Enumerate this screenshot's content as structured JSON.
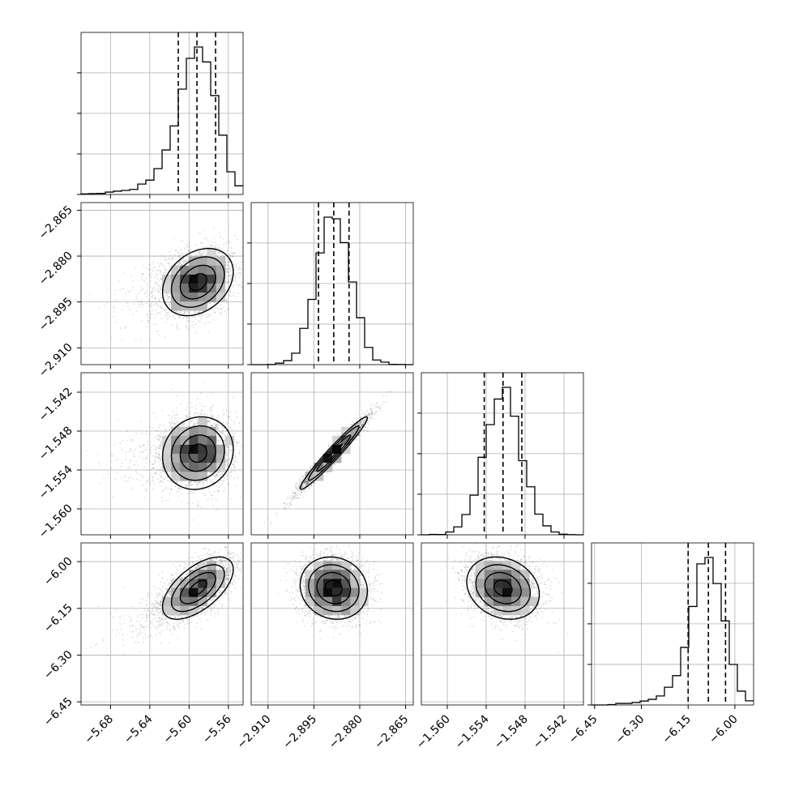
{
  "chart_data": {
    "type": "corner",
    "params": [
      {
        "range": [
          -5.71,
          -5.545
        ],
        "ticks": [
          -5.68,
          -5.64,
          -5.6,
          -5.56
        ],
        "tick_labels": [
          "−5.68",
          "−5.64",
          "−5.60",
          "−5.56"
        ],
        "mean": -5.591,
        "sd": 0.018,
        "skew": "left",
        "quantiles": [
          -5.611,
          -5.592,
          -5.573
        ]
      },
      {
        "range": [
          -2.9155,
          -2.8625
        ],
        "ticks": [
          -2.91,
          -2.895,
          -2.88,
          -2.865
        ],
        "tick_labels": [
          "−2.910",
          "−2.895",
          "−2.880",
          "−2.865"
        ],
        "mean": -2.8885,
        "sd": 0.0055,
        "skew": "none",
        "quantiles": [
          -2.8935,
          -2.8885,
          -2.8835
        ]
      },
      {
        "range": [
          -1.564,
          -1.539
        ],
        "ticks": [
          -1.56,
          -1.554,
          -1.548,
          -1.542
        ],
        "tick_labels": [
          "−1.560",
          "−1.554",
          "−1.548",
          "−1.542"
        ],
        "mean": -1.5514,
        "sd": 0.0028,
        "skew": "none",
        "quantiles": [
          -1.5543,
          -1.5514,
          -1.5485
        ]
      },
      {
        "range": [
          -6.46,
          -5.94
        ],
        "ticks": [
          -6.45,
          -6.3,
          -6.15,
          -6.0
        ],
        "tick_labels": [
          "−6.45",
          "−6.30",
          "−6.15",
          "−6.00"
        ],
        "mean": -6.085,
        "sd": 0.05,
        "skew": "left",
        "quantiles": [
          -6.15,
          -6.085,
          -6.03
        ]
      }
    ],
    "correlations": {
      "1-0": 0.3,
      "2-0": 0.1,
      "2-1": 0.97,
      "3-0": 0.6,
      "3-1": -0.1,
      "3-2": -0.2
    },
    "quantile_line_style": "dashed",
    "contour_levels": [
      0.5,
      1.0,
      1.5,
      2.0
    ],
    "grid": true,
    "colors": {
      "line": "#000000",
      "grid": "#b0b0b0",
      "scatter": "#000000"
    }
  }
}
